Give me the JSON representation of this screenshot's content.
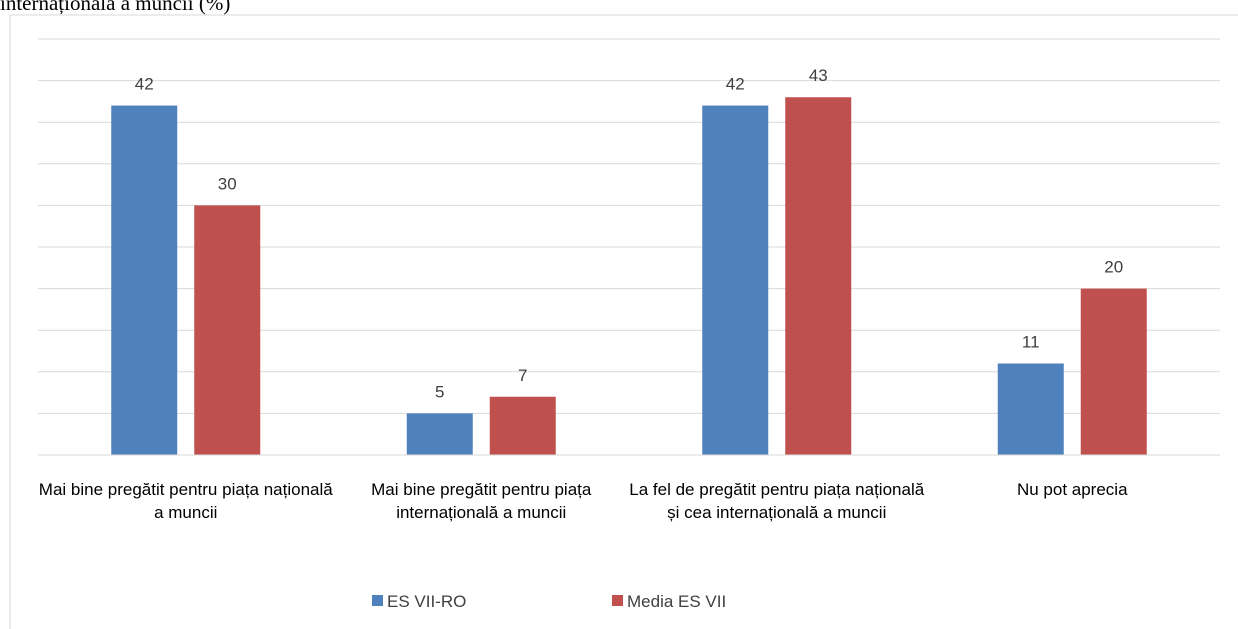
{
  "chart_data": {
    "type": "bar",
    "title": "internațională a muncii (%)",
    "categories": [
      "Mai bine pregătit pentru piața națională a muncii",
      "Mai bine pregătit pentru piața internațională a muncii",
      "La fel de pregătit pentru piața națională și cea internațională a muncii",
      "Nu pot aprecia"
    ],
    "series": [
      {
        "name": "ES VII-RO",
        "color": "#4f81bd",
        "values": [
          42,
          5,
          42,
          11
        ]
      },
      {
        "name": "Media ES VII",
        "color": "#c0504d",
        "values": [
          30,
          7,
          43,
          20
        ]
      }
    ],
    "ylim": [
      0,
      50
    ],
    "yticks": [
      0,
      5,
      10,
      15,
      20,
      25,
      30,
      35,
      40,
      45,
      50
    ],
    "grid": true,
    "legend": "bottom"
  }
}
